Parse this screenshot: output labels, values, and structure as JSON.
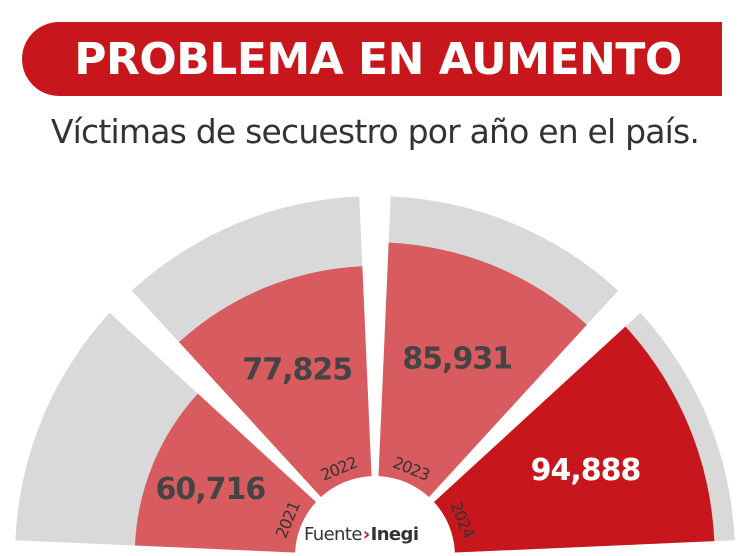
{
  "header": {
    "title": "PROBLEMA EN AUMENTO",
    "subtitle": "Víctimas de secuestro por año en el país."
  },
  "source": {
    "label": "Fuente",
    "arrow": "›",
    "org": "Inegi"
  },
  "colors": {
    "accent": "#c8161d",
    "wedge": "#d85c5f",
    "track": "#d9d9d9"
  },
  "chart_data": {
    "type": "bar",
    "layout": "radial-semicircle",
    "categories": [
      "2021",
      "2022",
      "2023",
      "2024"
    ],
    "values": [
      60716,
      77825,
      85931,
      94888
    ],
    "value_labels": [
      "60,716",
      "77,825",
      "85,931",
      "94,888"
    ],
    "highlight_index": 3,
    "title": "PROBLEMA EN AUMENTO",
    "subtitle": "Víctimas de secuestro por año en el país.",
    "xlabel": "",
    "ylabel": "",
    "legend": "none",
    "grid": false
  }
}
